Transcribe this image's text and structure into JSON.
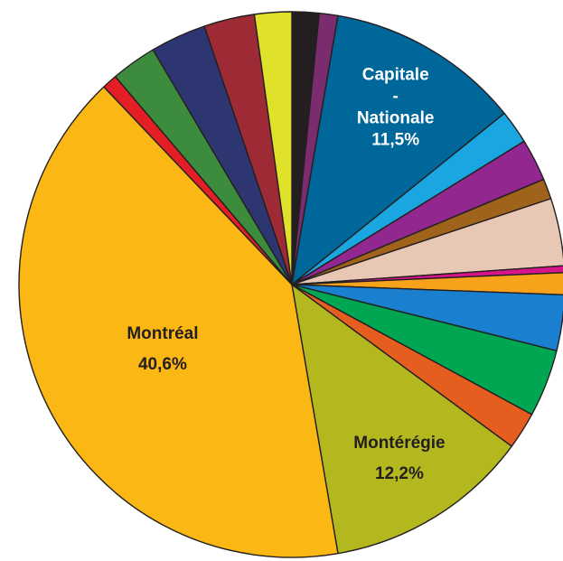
{
  "chart_data": {
    "type": "pie",
    "categories": [
      null,
      null,
      "Capitale - Nationale",
      null,
      null,
      null,
      null,
      null,
      null,
      null,
      null,
      null,
      "Montérégie",
      "Montréal",
      null,
      null,
      null,
      null,
      null
    ],
    "values": [
      1.6,
      1.1,
      11.5,
      2.0,
      2.5,
      1.2,
      4.0,
      0.4,
      1.3,
      3.3,
      4.0,
      2.2,
      12.2,
      40.6,
      0.9,
      2.7,
      3.3,
      3.0,
      2.2
    ],
    "value_labels": [
      null,
      null,
      "11,5%",
      null,
      null,
      null,
      null,
      null,
      null,
      null,
      null,
      null,
      "12,2%",
      "40,6%",
      null,
      null,
      null,
      null,
      null
    ],
    "colors": [
      "#231f20",
      "#7b2c6e",
      "#00679a",
      "#1aa6e0",
      "#92278f",
      "#a0631c",
      "#e8c8b4",
      "#d6158a",
      "#f7a21b",
      "#1a7fcf",
      "#00a651",
      "#e55d1f",
      "#b3b81e",
      "#fbb713",
      "#e31e24",
      "#3d8b3d",
      "#2e3672",
      "#9e2a36",
      "#dfe12a"
    ]
  }
}
